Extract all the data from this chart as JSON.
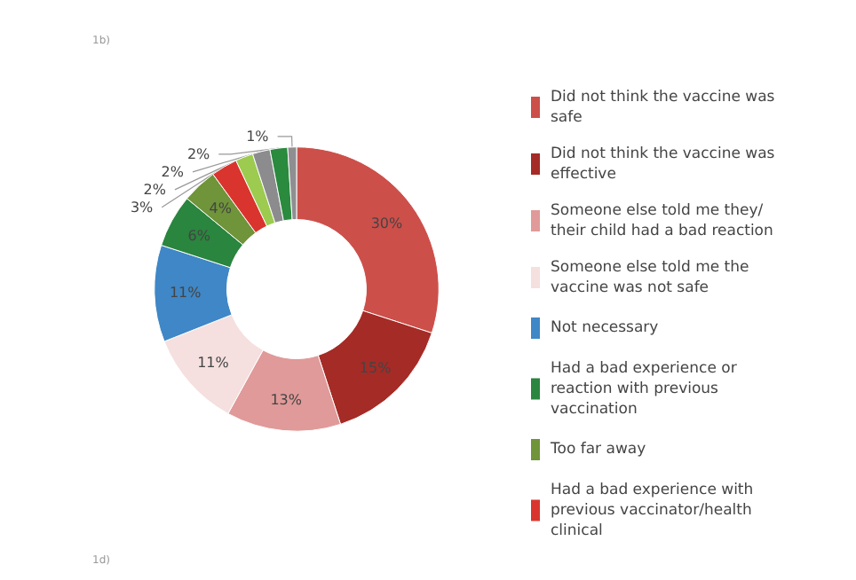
{
  "chart_data": {
    "type": "donut",
    "categories": [
      "Did not think the vaccine was safe",
      "Did not think the vaccine was effective",
      "Someone else told me they/their child had a bad reaction",
      "Someone else told me the vaccine was not safe",
      "Not necessary",
      "Had a bad experience or reaction with previous vaccination",
      "Too far away",
      "Had a bad experience with previous vaccinator/health clinical",
      null,
      null,
      null,
      null
    ],
    "values": [
      30,
      15,
      13,
      11,
      11,
      6,
      4,
      3,
      2,
      2,
      2,
      1
    ],
    "value_labels": [
      "30%",
      "15%",
      "13%",
      "11%",
      "11%",
      "6%",
      "4%",
      "3%",
      "2%",
      "2%",
      "2%",
      "1%"
    ],
    "colors": [
      "#cd4f4a",
      "#a52b26",
      "#e09a99",
      "#f5dfdf",
      "#3f87c6",
      "#2a853e",
      "#6f943a",
      "#d9352e",
      "#9ccb4f",
      "#8c8c8e",
      "#2a8a3e",
      "#8f8f92"
    ],
    "legend": "right",
    "annotations": [
      "1b)",
      "1d)"
    ]
  }
}
